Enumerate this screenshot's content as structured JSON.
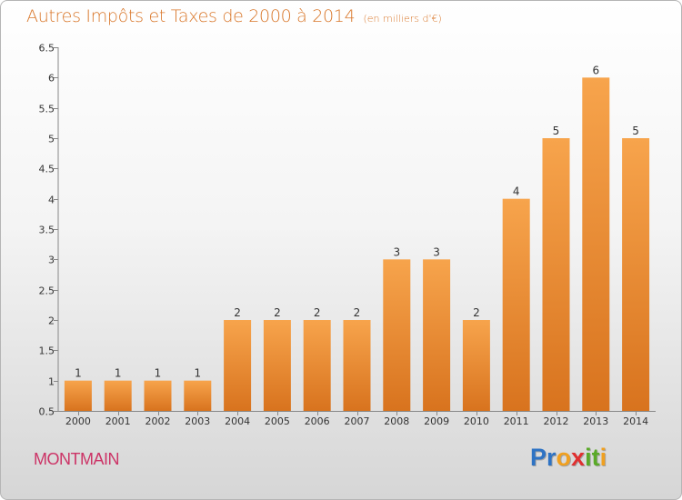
{
  "header": {
    "title": "Autres Impôts et Taxes de 2000 à 2014",
    "unit_note": "(en milliers d'€)"
  },
  "footer": {
    "commune": "MONTMAIN",
    "logo_letters": [
      {
        "char": "P",
        "color": "#2e73c4"
      },
      {
        "char": "r",
        "color": "#2e73c4"
      },
      {
        "char": "o",
        "color": "#f0a020"
      },
      {
        "char": "x",
        "color": "#e03030"
      },
      {
        "char": "i",
        "color": "#5aaa28"
      },
      {
        "char": "t",
        "color": "#5aaa28"
      },
      {
        "char": "i",
        "color": "#f0a020"
      }
    ]
  },
  "chart_data": {
    "type": "bar",
    "categories": [
      "2000",
      "2001",
      "2002",
      "2003",
      "2004",
      "2005",
      "2006",
      "2007",
      "2008",
      "2009",
      "2010",
      "2011",
      "2012",
      "2013",
      "2014"
    ],
    "values": [
      1,
      1,
      1,
      1,
      2,
      2,
      2,
      2,
      3,
      3,
      2,
      4,
      5,
      6,
      5
    ],
    "data_labels": [
      "1",
      "1",
      "1",
      "1",
      "2",
      "2",
      "2",
      "2",
      "3",
      "3",
      "2",
      "4",
      "5",
      "6",
      "5"
    ],
    "ylim": [
      0.5,
      6.5
    ],
    "yticks": [
      0.5,
      1,
      1.5,
      2,
      2.5,
      3,
      3.5,
      4,
      4.5,
      5,
      5.5,
      6,
      6.5
    ],
    "ytick_labels": [
      "0.5",
      "1",
      "1.5",
      "2",
      "2.5",
      "3",
      "3.5",
      "4",
      "4.5",
      "5",
      "5.5",
      "6",
      "6.5"
    ],
    "grid": false,
    "bar_color_light": "#f7a44c",
    "bar_color_dark": "#d8731e",
    "axis_color": "#888888"
  }
}
